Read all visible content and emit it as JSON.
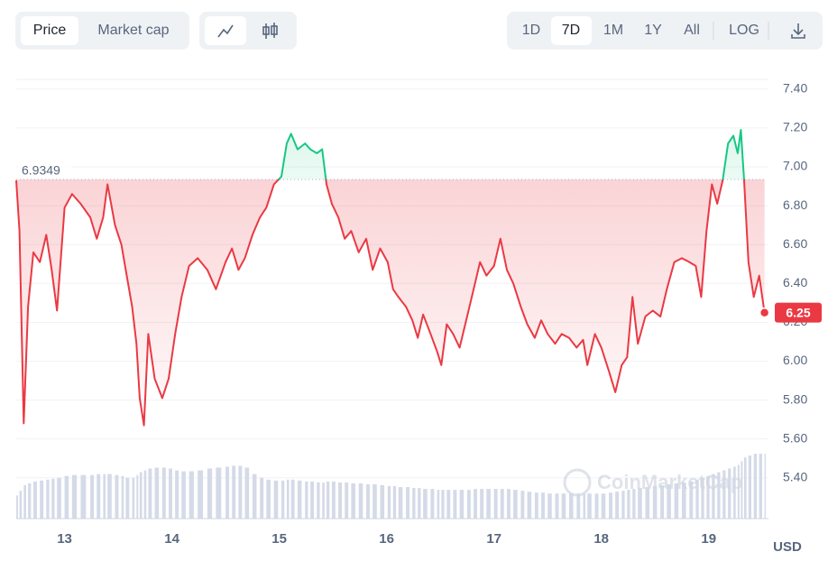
{
  "ui": {
    "tabs": [
      "Price",
      "Market cap"
    ],
    "active_tab": 0,
    "ranges": [
      "1D",
      "7D",
      "1M",
      "1Y",
      "All"
    ],
    "active_range": 1,
    "log": "LOG"
  },
  "chart_data": {
    "type": "line",
    "x": [
      12.55,
      12.58,
      12.62,
      12.66,
      12.71,
      12.77,
      12.83,
      12.88,
      12.93,
      13.0,
      13.07,
      13.15,
      13.24,
      13.3,
      13.36,
      13.4,
      13.47,
      13.53,
      13.57,
      13.63,
      13.67,
      13.7,
      13.74,
      13.78,
      13.84,
      13.91,
      13.97,
      14.03,
      14.09,
      14.16,
      14.24,
      14.33,
      14.41,
      14.5,
      14.56,
      14.62,
      14.68,
      14.75,
      14.82,
      14.88,
      14.95,
      15.02,
      15.07,
      15.11,
      15.17,
      15.24,
      15.29,
      15.35,
      15.4,
      15.44,
      15.49,
      15.55,
      15.61,
      15.67,
      15.74,
      15.81,
      15.87,
      15.94,
      16.01,
      16.06,
      16.11,
      16.18,
      16.24,
      16.29,
      16.34,
      16.41,
      16.47,
      16.51,
      16.56,
      16.62,
      16.68,
      16.75,
      16.81,
      16.87,
      16.93,
      17.0,
      17.06,
      17.12,
      17.18,
      17.25,
      17.31,
      17.38,
      17.44,
      17.5,
      17.57,
      17.63,
      17.7,
      17.77,
      17.83,
      17.87,
      17.94,
      18.0,
      18.07,
      18.13,
      18.19,
      18.24,
      18.29,
      18.34,
      18.41,
      18.48,
      18.55,
      18.61,
      18.68,
      18.75,
      18.82,
      18.88,
      18.93,
      18.98,
      19.03,
      19.08,
      19.13,
      19.18,
      19.23,
      19.27,
      19.3,
      19.33,
      19.37,
      19.42,
      19.47,
      19.52
    ],
    "y": [
      6.93,
      6.67,
      5.68,
      6.28,
      6.56,
      6.51,
      6.65,
      6.47,
      6.26,
      6.79,
      6.86,
      6.81,
      6.74,
      6.63,
      6.74,
      6.91,
      6.7,
      6.6,
      6.47,
      6.28,
      6.09,
      5.81,
      5.67,
      6.14,
      5.91,
      5.81,
      5.91,
      6.14,
      6.33,
      6.49,
      6.53,
      6.47,
      6.37,
      6.51,
      6.58,
      6.47,
      6.53,
      6.65,
      6.74,
      6.79,
      6.91,
      6.95,
      7.12,
      7.17,
      7.09,
      7.12,
      7.09,
      7.07,
      7.09,
      6.91,
      6.81,
      6.74,
      6.63,
      6.67,
      6.56,
      6.63,
      6.47,
      6.58,
      6.51,
      6.37,
      6.33,
      6.28,
      6.21,
      6.12,
      6.24,
      6.14,
      6.05,
      5.98,
      6.19,
      6.14,
      6.07,
      6.23,
      6.37,
      6.51,
      6.44,
      6.49,
      6.63,
      6.47,
      6.4,
      6.28,
      6.19,
      6.12,
      6.21,
      6.14,
      6.09,
      6.14,
      6.12,
      6.07,
      6.11,
      5.98,
      6.14,
      6.07,
      5.95,
      5.84,
      5.98,
      6.02,
      6.33,
      6.09,
      6.23,
      6.26,
      6.23,
      6.37,
      6.51,
      6.53,
      6.51,
      6.49,
      6.33,
      6.67,
      6.91,
      6.81,
      6.93,
      7.12,
      7.16,
      7.07,
      7.19,
      6.93,
      6.51,
      6.33,
      6.44,
      6.25
    ],
    "volume": [
      25,
      30,
      36,
      38,
      40,
      41,
      42,
      43,
      44,
      46,
      47,
      47,
      47,
      48,
      48,
      48,
      47,
      46,
      44,
      44,
      47,
      50,
      52,
      54,
      55,
      55,
      54,
      52,
      51,
      51,
      52,
      54,
      55,
      56,
      57,
      57,
      55,
      48,
      44,
      42,
      41,
      41,
      42,
      42,
      41,
      40,
      40,
      39,
      39,
      40,
      40,
      39,
      39,
      38,
      38,
      37,
      37,
      36,
      35,
      35,
      34,
      34,
      33,
      33,
      32,
      32,
      31,
      31,
      31,
      31,
      31,
      31,
      32,
      32,
      32,
      32,
      32,
      32,
      31,
      30,
      29,
      28,
      28,
      27,
      27,
      27,
      27,
      27,
      27,
      27,
      27,
      27,
      28,
      29,
      30,
      31,
      32,
      33,
      34,
      35,
      36,
      37,
      38,
      39,
      40,
      42,
      44,
      46,
      48,
      50,
      52,
      54,
      56,
      58,
      62,
      66,
      68,
      70,
      70,
      70
    ],
    "baseline": 6.9349,
    "up_color": "#16c784",
    "down_color": "#ea3943",
    "volume_color": "#cfd6e4",
    "xlim": [
      12.55,
      19.54
    ],
    "xticks": [
      13,
      14,
      15,
      16,
      17,
      18,
      19
    ],
    "ylim": [
      5.19,
      7.45
    ],
    "yticks": [
      {
        "value": 5.4,
        "label": "5.40"
      },
      {
        "value": 5.6,
        "label": "5.60"
      },
      {
        "value": 5.8,
        "label": "5.80"
      },
      {
        "value": 6.0,
        "label": "6.00"
      },
      {
        "value": 6.2,
        "label": "6.20"
      },
      {
        "value": 6.4,
        "label": "6.40"
      },
      {
        "value": 6.6,
        "label": "6.60"
      },
      {
        "value": 6.8,
        "label": "6.80"
      },
      {
        "value": 7.0,
        "label": "7.00"
      },
      {
        "value": 7.2,
        "label": "7.20"
      },
      {
        "value": 7.4,
        "label": "7.40"
      }
    ],
    "grid": true,
    "y_unit": "USD",
    "watermark": "CoinMarketCap"
  }
}
